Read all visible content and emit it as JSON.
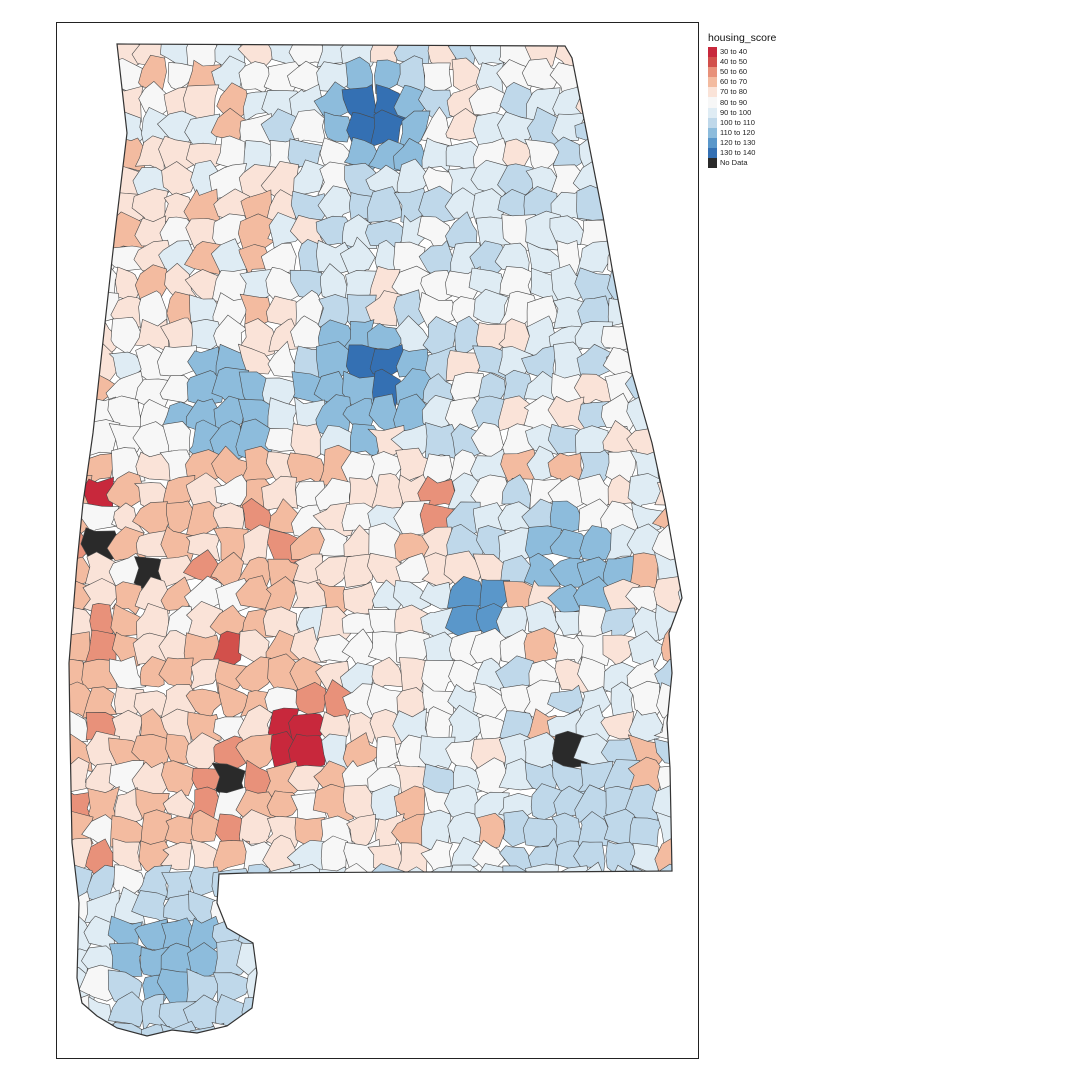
{
  "legend": {
    "title": "housing_score",
    "classes": [
      {
        "label": "30 to 40",
        "color": "#C8283C"
      },
      {
        "label": "40 to 50",
        "color": "#D2504B"
      },
      {
        "label": "50 to 60",
        "color": "#E8917A"
      },
      {
        "label": "60 to 70",
        "color": "#F3BBA0"
      },
      {
        "label": "70 to 80",
        "color": "#FAE3D8"
      },
      {
        "label": "80 to 90",
        "color": "#F7F7F7"
      },
      {
        "label": "90 to 100",
        "color": "#DFECF4"
      },
      {
        "label": "100 to 110",
        "color": "#BFD8EA"
      },
      {
        "label": "110 to 120",
        "color": "#8DBCDC"
      },
      {
        "label": "120 to 130",
        "color": "#5A97CA"
      },
      {
        "label": "130 to 140",
        "color": "#3470B3"
      },
      {
        "label": "No Data",
        "color": "#2A2A2A"
      }
    ]
  },
  "map": {
    "region": "Alabama",
    "variable": "housing_score",
    "outline_color": "#444444"
  }
}
